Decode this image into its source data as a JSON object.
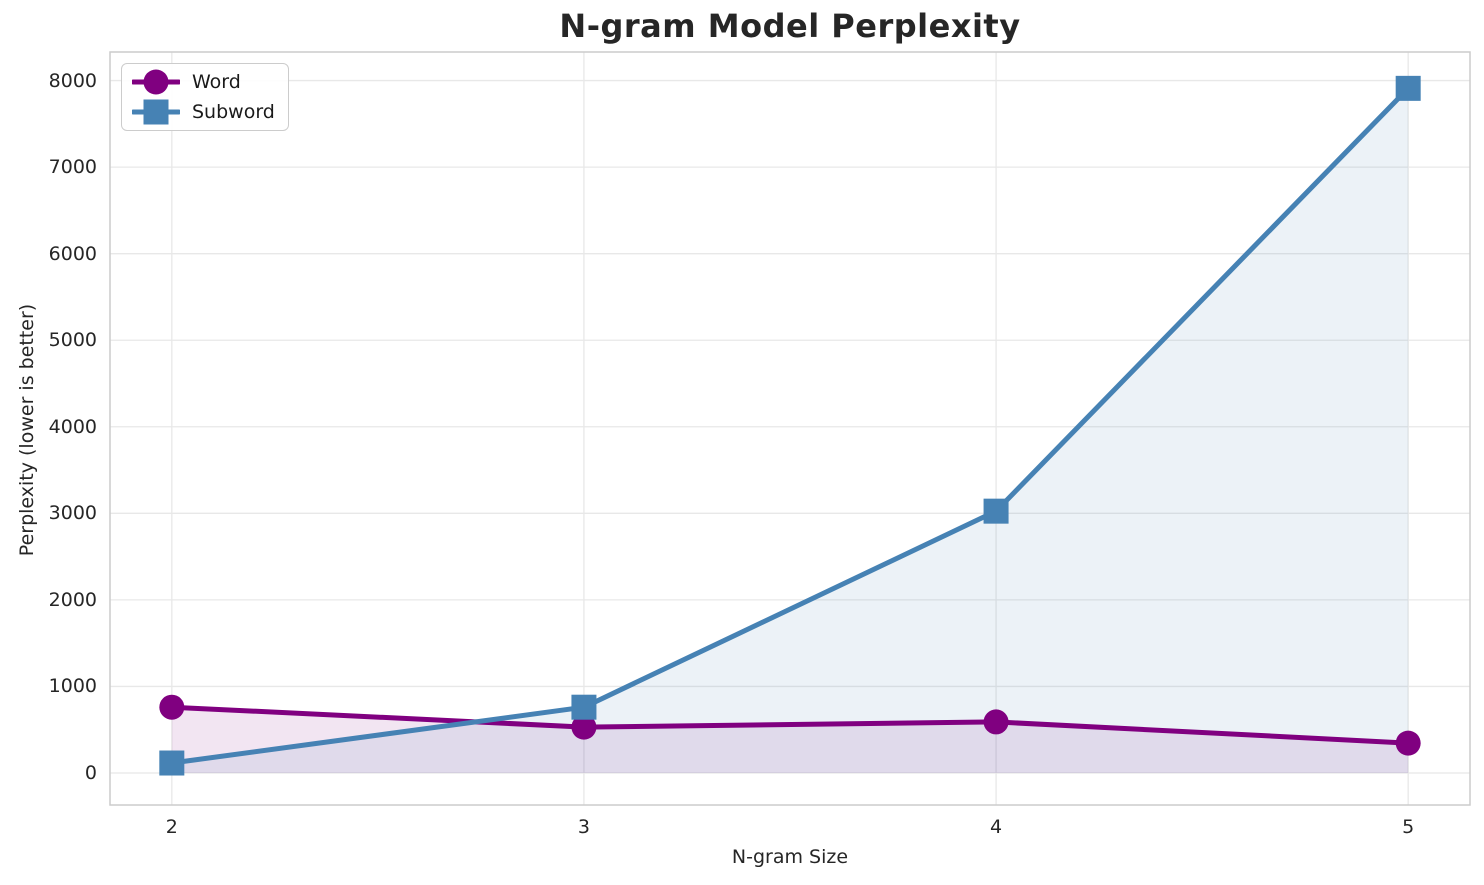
{
  "chart_data": {
    "type": "line",
    "title": "N-gram Model Perplexity",
    "xlabel": "N-gram Size",
    "ylabel": "Perplexity (lower is better)",
    "x": [
      2,
      3,
      4,
      5
    ],
    "x_tick_labels": [
      "2",
      "3",
      "4",
      "5"
    ],
    "y_ticks": [
      0,
      1000,
      2000,
      3000,
      4000,
      5000,
      6000,
      7000,
      8000
    ],
    "xlim": [
      1.85,
      5.15
    ],
    "ylim": [
      -370,
      8330
    ],
    "grid": true,
    "legend_position": "upper-left",
    "fill_baseline": 0,
    "series": [
      {
        "name": "Word",
        "color": "#800080",
        "marker": "circle",
        "fill_alpha": 0.1,
        "values": [
          760,
          530,
          590,
          345
        ]
      },
      {
        "name": "Subword",
        "color": "#4682B4",
        "marker": "square",
        "fill_alpha": 0.1,
        "values": [
          115,
          760,
          3025,
          7910
        ]
      }
    ]
  },
  "colors": {
    "gridline": "#e8e8e8",
    "spine": "#cccccc",
    "text": "#262626",
    "word_series": "#800080",
    "subword_series": "#4682B4"
  }
}
